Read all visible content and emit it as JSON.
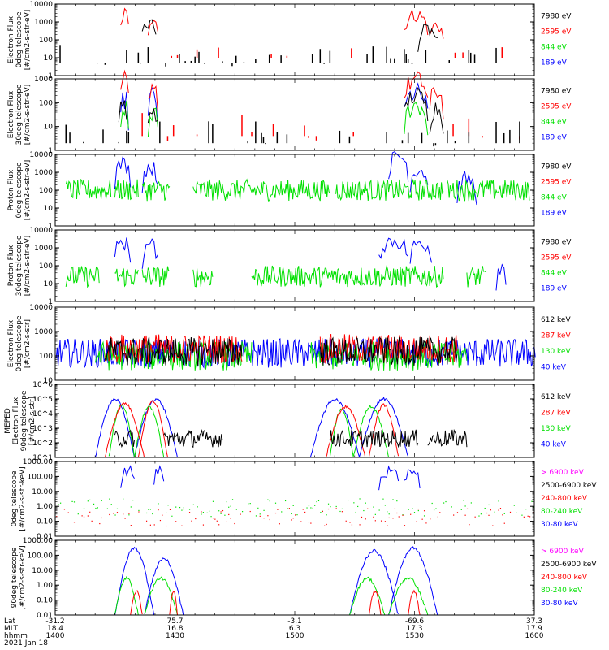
{
  "colors": {
    "black": "#000000",
    "red": "#ff0000",
    "green": "#00e000",
    "blue": "#0000ff",
    "magenta": "#ff00ff"
  },
  "chart_data": [
    {
      "type": "line",
      "ylabel": [
        "Electron Flux",
        "0deg telescope",
        "[#/cm2-s-str-eV]"
      ],
      "ylog": true,
      "ylim": [
        1,
        10000
      ],
      "yticks": [
        "1",
        "10",
        "100",
        "1000",
        "10000"
      ],
      "series": [
        {
          "name": "7980 eV",
          "color": "black",
          "style": "spikes",
          "level": 12,
          "bursts": [
            [
              44,
              51,
              900
            ],
            [
              185,
              195,
              350
            ]
          ],
          "density": 0.15
        },
        {
          "name": "2595 eV",
          "color": "red",
          "style": "spikes",
          "level": 25,
          "bursts": [
            [
              33,
              37,
              3000
            ],
            [
              47,
              52,
              2000
            ],
            [
              178,
              190,
              2500
            ],
            [
              191,
              198,
              700
            ]
          ],
          "density": 0.05
        },
        {
          "name": "844 eV",
          "color": "green",
          "style": "none"
        },
        {
          "name": "189 eV",
          "color": "blue",
          "style": "none"
        }
      ]
    },
    {
      "type": "line",
      "ylabel": [
        "Electron Flux",
        "30deg telescope",
        "[#/cm2-s-str-eV]"
      ],
      "ylog": true,
      "ylim": [
        1,
        1000
      ],
      "yticks": [
        "1",
        "10",
        "100",
        "1000"
      ],
      "series": [
        {
          "name": "7980 eV",
          "color": "black",
          "style": "spikes",
          "level": 5,
          "bursts": [
            [
              32,
              36,
              100
            ],
            [
              47,
              52,
              60
            ],
            [
              178,
              190,
              200
            ],
            [
              191,
              198,
              60
            ]
          ],
          "density": 0.1
        },
        {
          "name": "2595 eV",
          "color": "red",
          "style": "spikes",
          "level": 10,
          "bursts": [
            [
              33,
              37,
              1000
            ],
            [
              47,
              52,
              600
            ],
            [
              178,
              190,
              900
            ],
            [
              191,
              198,
              300
            ]
          ],
          "density": 0.04
        },
        {
          "name": "844 eV",
          "color": "green",
          "style": "bursts",
          "bursts": [
            [
              33,
              37,
              60
            ],
            [
              47,
              52,
              40
            ],
            [
              178,
              190,
              80
            ]
          ]
        },
        {
          "name": "189 eV",
          "color": "blue",
          "style": "bursts",
          "bursts": [
            [
              33,
              37,
              150
            ],
            [
              47,
              52,
              200
            ],
            [
              178,
              190,
              250
            ]
          ]
        }
      ]
    },
    {
      "type": "line",
      "ylabel": [
        "Proton Flux",
        "0deg telescope",
        "[#/cm2-s-str-eV]"
      ],
      "ylog": true,
      "ylim": [
        1,
        10000
      ],
      "yticks": [
        "1",
        "10",
        "100",
        "1000",
        "10000"
      ],
      "series": [
        {
          "name": "7980 eV",
          "color": "black",
          "style": "none"
        },
        {
          "name": "2595 eV",
          "color": "red",
          "style": "none"
        },
        {
          "name": "844 eV",
          "color": "green",
          "style": "dense",
          "level": 100,
          "segments": [
            [
              5,
              28
            ],
            [
              30,
              42
            ],
            [
              44,
              58
            ],
            [
              70,
              140
            ],
            [
              143,
              198
            ],
            [
              200,
              242
            ]
          ]
        },
        {
          "name": "189 eV",
          "color": "blue",
          "style": "bursts",
          "bursts": [
            [
              30,
              38,
              3000
            ],
            [
              44,
              52,
              2000
            ],
            [
              170,
              180,
              8000
            ],
            [
              181,
              190,
              1500
            ],
            [
              205,
              215,
              400
            ]
          ]
        }
      ]
    },
    {
      "type": "line",
      "ylabel": [
        "Proton Flux",
        "30deg telescope",
        "[#/cm2-s-str-eV]"
      ],
      "ylog": true,
      "ylim": [
        1,
        10000
      ],
      "yticks": [
        "1",
        "10",
        "100",
        "1000",
        "10000"
      ],
      "series": [
        {
          "name": "7980 eV",
          "color": "black",
          "style": "none"
        },
        {
          "name": "2595 eV",
          "color": "red",
          "style": "none"
        },
        {
          "name": "844 eV",
          "color": "green",
          "style": "dense",
          "level": 25,
          "segments": [
            [
              5,
              22
            ],
            [
              30,
              42
            ],
            [
              44,
              58
            ],
            [
              70,
              80
            ],
            [
              100,
              198
            ],
            [
              210,
              220
            ]
          ]
        },
        {
          "name": "189 eV",
          "color": "blue",
          "style": "bursts",
          "bursts": [
            [
              30,
              38,
              2000
            ],
            [
              44,
              52,
              1500
            ],
            [
              165,
              180,
              2500
            ],
            [
              181,
              192,
              2000
            ],
            [
              225,
              230,
              100
            ]
          ]
        }
      ]
    },
    {
      "type": "line",
      "ylabel": [
        "Electron Flux",
        "0deg telescope",
        "[#/cm2-s-str]"
      ],
      "ylog": true,
      "ylim": [
        10,
        10000
      ],
      "yticks": [
        "10",
        "100",
        "1000",
        "10000"
      ],
      "series": [
        {
          "name": "612 keV",
          "color": "black",
          "style": "dense",
          "level": 150,
          "segments": [
            [
              25,
              95
            ],
            [
              135,
              205
            ]
          ]
        },
        {
          "name": "287 keV",
          "color": "red",
          "style": "dense",
          "level": 200,
          "segments": [
            [
              25,
              95
            ],
            [
              135,
              205
            ]
          ]
        },
        {
          "name": "130 keV",
          "color": "green",
          "style": "dense",
          "level": 100,
          "segments": [
            [
              20,
              100
            ],
            [
              130,
              210
            ]
          ]
        },
        {
          "name": "40 keV",
          "color": "blue",
          "style": "dense",
          "level": 130,
          "segments": [
            [
              0,
              245
            ]
          ]
        }
      ]
    },
    {
      "type": "line",
      "ylabel": [
        "MEPED",
        "Electron Flux",
        "90deg telescope",
        "[#/cm2-s-str]"
      ],
      "ylog": true,
      "ylim": [
        10,
        1000000
      ],
      "yticks": [
        "10^1",
        "10^2",
        "10^3",
        "10^4",
        "10^5",
        "10^6"
      ],
      "series": [
        {
          "name": "612 keV",
          "color": "black",
          "style": "dense",
          "level": 200,
          "segments": [
            [
              30,
              40
            ],
            [
              55,
              85
            ],
            [
              140,
              185
            ],
            [
              190,
              210
            ]
          ]
        },
        {
          "name": "287 keV",
          "color": "red",
          "style": "arches",
          "arches": [
            [
              25,
              45,
              50000
            ],
            [
              42,
              57,
              70000
            ],
            [
              138,
              158,
              30000
            ],
            [
              160,
              175,
              40000
            ]
          ]
        },
        {
          "name": "130 keV",
          "color": "green",
          "style": "arches",
          "arches": [
            [
              27,
              40,
              40000
            ],
            [
              40,
              55,
              30000
            ],
            [
              140,
              152,
              20000
            ],
            [
              152,
              170,
              30000
            ]
          ]
        },
        {
          "name": "40 keV",
          "color": "blue",
          "style": "arches",
          "arches": [
            [
              20,
              40,
              100000
            ],
            [
              40,
              62,
              100000
            ],
            [
              130,
              155,
              90000
            ],
            [
              155,
              180,
              100000
            ]
          ]
        }
      ]
    },
    {
      "type": "line",
      "ylabel": [
        "0deg telescope",
        "[#/cm2-s-str-keV]"
      ],
      "ylog": true,
      "ylim": [
        0.01,
        1000
      ],
      "yticks": [
        "0.01",
        "0.10",
        "1.00",
        "10.00",
        "100.00",
        "1000.00"
      ],
      "series": [
        {
          "name": "> 6900 keV",
          "color": "magenta",
          "style": "none"
        },
        {
          "name": "2500-6900 keV",
          "color": "black",
          "style": "none"
        },
        {
          "name": "240-800 keV",
          "color": "red",
          "style": "scatter",
          "level": 0.2
        },
        {
          "name": "80-240 keV",
          "color": "green",
          "style": "scatter",
          "level": 0.9
        },
        {
          "name": "30-80 keV",
          "color": "blue",
          "style": "bursts",
          "bursts": [
            [
              33,
              40,
              300
            ],
            [
              50,
              55,
              300
            ],
            [
              165,
              175,
              200
            ],
            [
              178,
              186,
              300
            ]
          ]
        }
      ]
    },
    {
      "type": "line",
      "ylabel": [
        "90deg telescope",
        "[#/cm2-s-str-keV]"
      ],
      "ylog": true,
      "ylim": [
        0.01,
        1000
      ],
      "yticks": [
        "0.01",
        "0.10",
        "1.00",
        "10.00",
        "100.00",
        "1000.00"
      ],
      "series": [
        {
          "name": "> 6900 keV",
          "color": "magenta",
          "style": "none"
        },
        {
          "name": "2500-6900 keV",
          "color": "black",
          "style": "none"
        },
        {
          "name": "240-800 keV",
          "color": "red",
          "style": "arches",
          "arches": [
            [
              38,
              44,
              0.4
            ],
            [
              58,
              62,
              0.4
            ],
            [
              160,
              166,
              0.4
            ],
            [
              180,
              186,
              0.4
            ]
          ]
        },
        {
          "name": "80-240 keV",
          "color": "green",
          "style": "arches",
          "arches": [
            [
              30,
              42,
              3
            ],
            [
              45,
              62,
              3
            ],
            [
              150,
              168,
              3
            ],
            [
              170,
              190,
              3
            ]
          ]
        },
        {
          "name": "30-80 keV",
          "color": "blue",
          "style": "arches",
          "arches": [
            [
              30,
              50,
              300
            ],
            [
              45,
              65,
              60
            ],
            [
              150,
              175,
              200
            ],
            [
              170,
              195,
              300
            ]
          ]
        }
      ]
    }
  ],
  "xaxis": {
    "labels": [
      "Lat",
      "MLT",
      "hhmm"
    ],
    "date": "2021 Jan 18",
    "ticks": [
      {
        "lat": "-31.2",
        "mlt": "18.4",
        "hhmm": "1400"
      },
      {
        "lat": "75.7",
        "mlt": "16.8",
        "hhmm": "1430"
      },
      {
        "lat": "-3.1",
        "mlt": "6.3",
        "hhmm": "1500"
      },
      {
        "lat": "-69.6",
        "mlt": "17.3",
        "hhmm": "1530"
      },
      {
        "lat": "37.3",
        "mlt": "17.9",
        "hhmm": "1600"
      }
    ]
  }
}
